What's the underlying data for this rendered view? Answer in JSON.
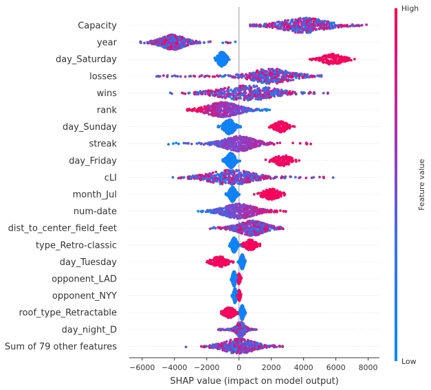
{
  "chart_data": {
    "type": "beeswarm",
    "xlabel": "SHAP value (impact on model output)",
    "xlim": [
      -6800,
      8700
    ],
    "xticks": [
      -6000,
      -4000,
      -2000,
      0,
      2000,
      4000,
      6000,
      8000
    ],
    "xtick_labels": [
      "−6000",
      "−4000",
      "−2000",
      "0",
      "2000",
      "4000",
      "6000",
      "8000"
    ],
    "colorbar": {
      "high": "High",
      "low": "Low",
      "label": "Feature value",
      "low_color": "#008bfb",
      "high_color": "#ff0052"
    },
    "features": [
      {
        "name": "Capacity",
        "min": 700,
        "max": 8000,
        "center": 4000,
        "spread": 1300,
        "hi_side": "mixed"
      },
      {
        "name": "year",
        "min": -6100,
        "max": -150,
        "center": -4100,
        "spread": 700,
        "hi_side": "mixed"
      },
      {
        "name": "day_Saturday",
        "min": -1500,
        "max": 7600,
        "low_center": -1050,
        "low_spread": 200,
        "high_center": 5800,
        "high_spread": 500,
        "kind": "binary"
      },
      {
        "name": "losses",
        "min": -5200,
        "max": 5100,
        "center": 2000,
        "spread": 1200,
        "hi_side": "mixed"
      },
      {
        "name": "wins",
        "min": -4500,
        "max": 5500,
        "center": 500,
        "spread": 1600,
        "hi_side": "mixed"
      },
      {
        "name": "rank",
        "min": -3200,
        "max": 1900,
        "center": -1000,
        "spread": 900,
        "hi_side": "left"
      },
      {
        "name": "day_Sunday",
        "min": -1300,
        "max": 3600,
        "low_center": -600,
        "low_spread": 250,
        "high_center": 2600,
        "high_spread": 300,
        "kind": "binary"
      },
      {
        "name": "streak",
        "min": -4600,
        "max": 4800,
        "center": 0,
        "spread": 900,
        "hi_side": "right"
      },
      {
        "name": "day_Friday",
        "min": -1000,
        "max": 3800,
        "low_center": -500,
        "low_spread": 200,
        "high_center": 2700,
        "high_spread": 400,
        "kind": "binary"
      },
      {
        "name": "cLI",
        "min": -4100,
        "max": 6100,
        "center": -500,
        "spread": 1300,
        "hi_side": "mixed"
      },
      {
        "name": "month_Jul",
        "min": -900,
        "max": 3000,
        "low_center": -400,
        "low_spread": 150,
        "high_center": 2000,
        "high_spread": 400,
        "kind": "binary"
      },
      {
        "name": "num-date",
        "min": -2600,
        "max": 2900,
        "center": 0,
        "spread": 900,
        "hi_side": "right"
      },
      {
        "name": "dist_to_center_field_feet",
        "min": -1900,
        "max": 2900,
        "center": 800,
        "spread": 800,
        "hi_side": "mixed"
      },
      {
        "name": "type_Retro-classic",
        "min": -600,
        "max": 1300,
        "low_center": -300,
        "low_spread": 120,
        "high_center": 700,
        "high_spread": 250,
        "kind": "binary"
      },
      {
        "name": "day_Tuesday",
        "min": -2300,
        "max": 400,
        "low_center": 200,
        "low_spread": 80,
        "high_center": -1200,
        "high_spread": 350,
        "kind": "binary_neg"
      },
      {
        "name": "opponent_LAD",
        "min": -600,
        "max": 200,
        "low_center": -300,
        "low_spread": 80,
        "high_center": 0,
        "high_spread": 60,
        "kind": "binary"
      },
      {
        "name": "opponent_NYY",
        "min": -500,
        "max": 200,
        "low_center": -250,
        "low_spread": 70,
        "high_center": 0,
        "high_spread": 60,
        "kind": "binary"
      },
      {
        "name": "roof_type_Retractable",
        "min": -1100,
        "max": 400,
        "low_center": 200,
        "low_spread": 80,
        "high_center": -600,
        "high_spread": 250,
        "kind": "binary_neg"
      },
      {
        "name": "day_night_D",
        "min": -1300,
        "max": 1100,
        "center": 100,
        "spread": 250,
        "hi_side": "mixed"
      },
      {
        "name": "Sum of 79 other features",
        "min": -3500,
        "max": 2700,
        "center": 0,
        "spread": 900,
        "hi_side": "mixed"
      }
    ]
  }
}
